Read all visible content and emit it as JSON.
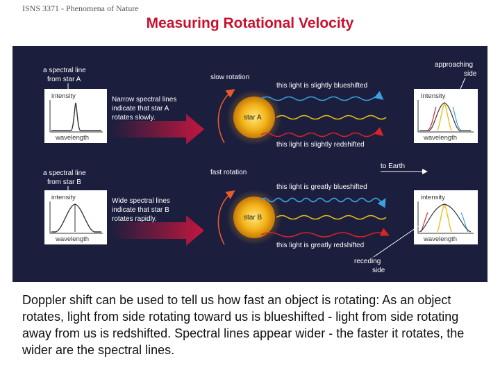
{
  "header": {
    "course": "ISNS 3371 - Phenomena of Nature",
    "title": "Measuring Rotational Velocity"
  },
  "figure": {
    "top": {
      "spectral_line_label_1": "a spectral line",
      "spectral_line_label_2": "from star A",
      "intensity": "intensity",
      "wavelength": "wavelength",
      "note_1": "Narrow spectral lines",
      "note_2": "indicate that star A",
      "note_3": "rotates slowly.",
      "rotation": "slow rotation",
      "blueshift": "this light is slightly blueshifted",
      "redshift": "this light is slightly redshifted",
      "star": "star A",
      "approaching_1": "approaching",
      "approaching_2": "side",
      "right_intensity": "Intensity",
      "right_wavelength": "wavelength"
    },
    "bottom": {
      "spectral_line_label_1": "a spectral line",
      "spectral_line_label_2": "from star B",
      "intensity": "intensity",
      "wavelength": "wavelength",
      "note_1": "Wide spectral lines",
      "note_2": "indicate that star B",
      "note_3": "rotates rapidly.",
      "rotation": "fast rotation",
      "to_earth": "to Earth",
      "blueshift": "this light is greatly blueshifted",
      "redshift": "this light is greatly redshifted",
      "star": "star B",
      "receding_1": "receding",
      "receding_2": "side",
      "right_intensity": "intensity",
      "right_wavelength": "wavelength"
    },
    "colors": {
      "background": "#1b1e3d",
      "star": "#f2b318",
      "blue": "#3aa0e0",
      "red": "#d8232a",
      "arrow": "#c4163f"
    }
  },
  "caption": "Doppler shift can be used to tell us how fast an object is rotating: As an object rotates, light from side rotating toward us is blueshifted - light from side rotating away from us is redshifted. Spectral lines appear wider - the faster it rotates, the wider are the spectral lines."
}
